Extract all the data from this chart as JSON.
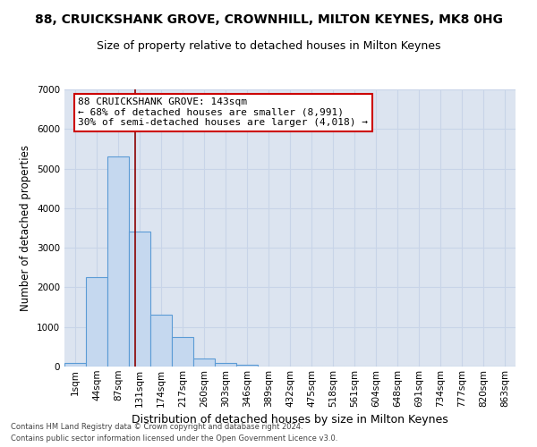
{
  "title": "88, CRUICKSHANK GROVE, CROWNHILL, MILTON KEYNES, MK8 0HG",
  "subtitle": "Size of property relative to detached houses in Milton Keynes",
  "xlabel": "Distribution of detached houses by size in Milton Keynes",
  "ylabel": "Number of detached properties",
  "footnote1": "Contains HM Land Registry data © Crown copyright and database right 2024.",
  "footnote2": "Contains public sector information licensed under the Open Government Licence v3.0.",
  "bar_labels": [
    "1sqm",
    "44sqm",
    "87sqm",
    "131sqm",
    "174sqm",
    "217sqm",
    "260sqm",
    "303sqm",
    "346sqm",
    "389sqm",
    "432sqm",
    "475sqm",
    "518sqm",
    "561sqm",
    "604sqm",
    "648sqm",
    "691sqm",
    "734sqm",
    "777sqm",
    "820sqm",
    "863sqm"
  ],
  "bar_values": [
    100,
    2250,
    5300,
    3400,
    1300,
    750,
    200,
    100,
    50,
    10,
    5,
    2,
    1,
    0,
    0,
    0,
    0,
    0,
    0,
    0,
    0
  ],
  "bar_color": "#c5d8ef",
  "bar_edgecolor": "#5b9bd5",
  "vline_color": "#8b0000",
  "annotation_text": "88 CRUICKSHANK GROVE: 143sqm\n← 68% of detached houses are smaller (8,991)\n30% of semi-detached houses are larger (4,018) →",
  "annotation_box_facecolor": "#ffffff",
  "annotation_box_edgecolor": "#cc0000",
  "ylim": [
    0,
    7000
  ],
  "yticks": [
    0,
    1000,
    2000,
    3000,
    4000,
    5000,
    6000,
    7000
  ],
  "grid_color": "#c8d4e8",
  "bg_color": "#dce4f0",
  "title_fontsize": 10,
  "subtitle_fontsize": 9,
  "xlabel_fontsize": 9,
  "ylabel_fontsize": 8.5,
  "tick_fontsize": 7.5,
  "annot_fontsize": 8
}
